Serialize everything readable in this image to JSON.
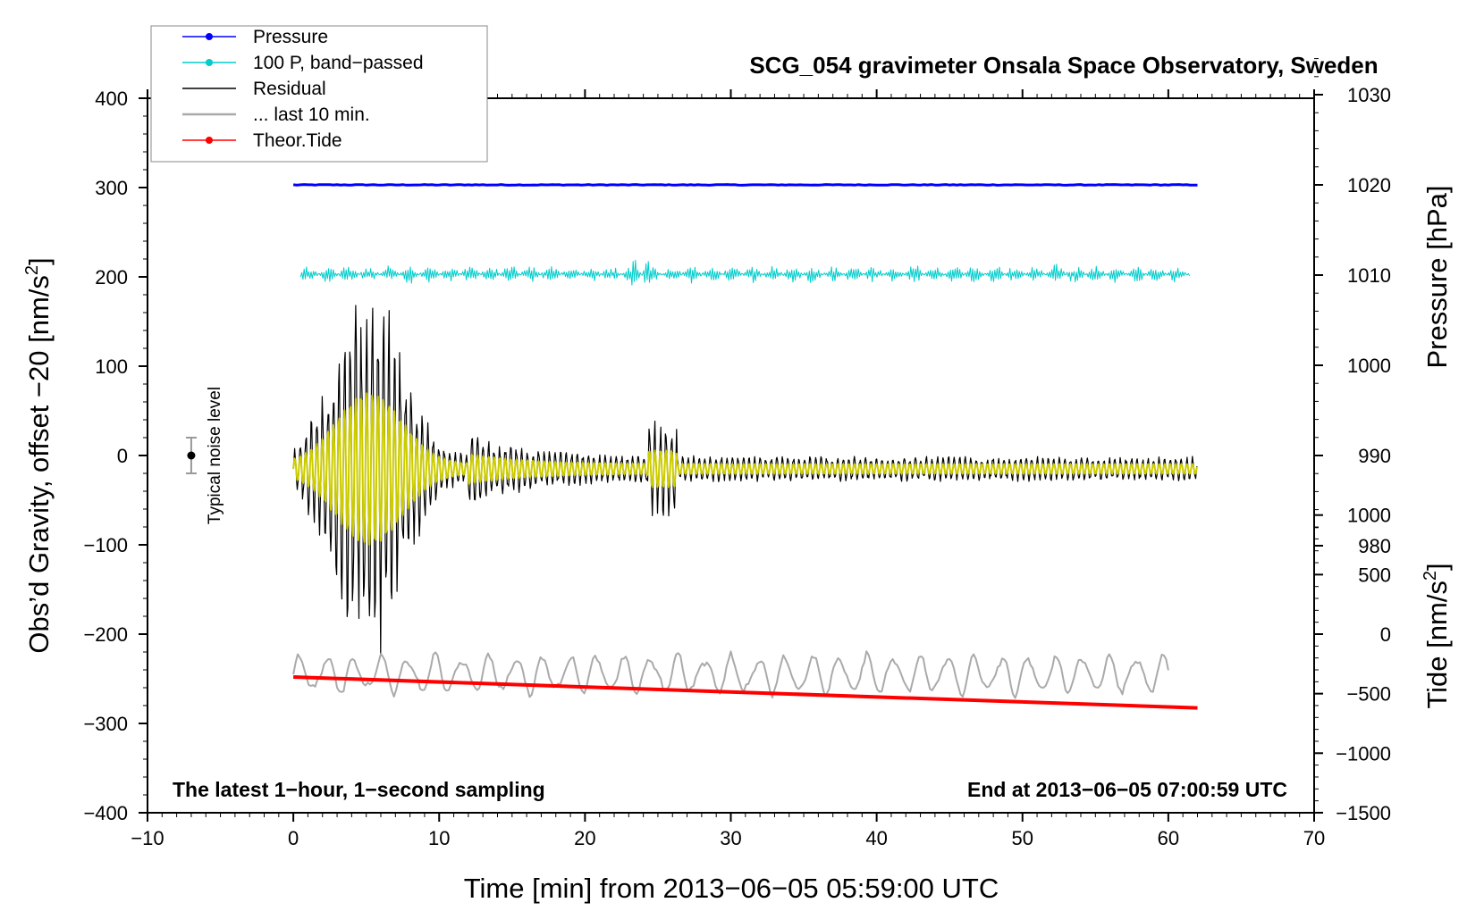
{
  "chart_data": {
    "type": "line",
    "title": "SCG_054 gravimeter Onsala Space Observatory, Sweden",
    "xlabel": "Time [min] from 2013−06−05 05:59:00 UTC",
    "ylabel_left": "Obs’d Gravity, offset −20 [nm/s",
    "ylabel_left_sup": "2",
    "ylabel_left_end": "]",
    "ylabel_right_pressure": "Pressure [hPa]",
    "ylabel_right_tide": "Tide [nm/s",
    "ylabel_right_tide_sup": "2",
    "ylabel_right_tide_end": "]",
    "xlim": [
      -10,
      70
    ],
    "ylim": [
      -400,
      400
    ],
    "xticks": [
      -10,
      0,
      10,
      20,
      30,
      40,
      50,
      60,
      70
    ],
    "xtick_labels": [
      "−10",
      "0",
      "10",
      "20",
      "30",
      "40",
      "50",
      "60",
      "70"
    ],
    "yticks": [
      400,
      300,
      200,
      100,
      0,
      -100,
      -200,
      -300,
      -400
    ],
    "ytick_labels": [
      "400",
      "300",
      "200",
      "100",
      "0",
      "−100",
      "−200",
      "−300",
      "−400"
    ],
    "pressure_axis": {
      "ticks": [
        1030,
        1020,
        1010,
        1000,
        990,
        980
      ],
      "tick_labels": [
        "1030",
        "1020",
        "1010",
        "1000",
        "990",
        "980"
      ],
      "gravity_at_1020": 303,
      "gravity_per_hpa": 10.1
    },
    "tide_axis": {
      "ticks": [
        1000,
        500,
        0,
        -500,
        -1000,
        -1500
      ],
      "tick_labels": [
        "1000",
        "500",
        "0",
        "−500",
        "−1000",
        "−1500"
      ],
      "gravity_at_0": -200,
      "gravity_per_unit": 0.1333
    },
    "series": [
      {
        "name": "Pressure",
        "color": "#0000ff",
        "x_range": [
          0,
          62
        ],
        "level_hpa": 1020
      },
      {
        "name": "100 P, band−passed",
        "color": "#00cccc",
        "x_range": [
          0,
          62
        ],
        "center": 203
      },
      {
        "name": "Residual",
        "color": "#000000",
        "x_range": [
          0,
          62
        ],
        "center": -15,
        "peak_amplitude": 190
      },
      {
        "name": "... last 10 min.",
        "color": "#aaaaaa",
        "x_range": [
          0,
          60
        ],
        "center": -245
      },
      {
        "name": "Theor.Tide",
        "color": "#ff0000",
        "x": [
          0,
          62
        ],
        "tide_nm_s2": [
          -360,
          -620
        ]
      },
      {
        "name": "Filtered residual",
        "color": "#cccc00",
        "x_range": [
          0,
          62
        ],
        "center": -15
      }
    ],
    "legend": [
      {
        "label": "Pressure",
        "color": "#0000ff",
        "marker": true
      },
      {
        "label": "100 P, band−passed",
        "color": "#00cccc",
        "marker": true
      },
      {
        "label": "Residual",
        "color": "#000000",
        "marker": false
      },
      {
        "label": "... last 10 min.",
        "color": "#aaaaaa",
        "marker": false
      },
      {
        "label": "Theor.Tide",
        "color": "#ff0000",
        "marker": true
      }
    ],
    "legend_position": "top-left",
    "noise_indicator": {
      "label": "Typical noise level",
      "x": -7,
      "y": 0,
      "err": 20
    },
    "annotation_left": "The latest 1−hour, 1−second sampling",
    "annotation_right": "End at 2013−06−05 07:00:59 UTC"
  }
}
